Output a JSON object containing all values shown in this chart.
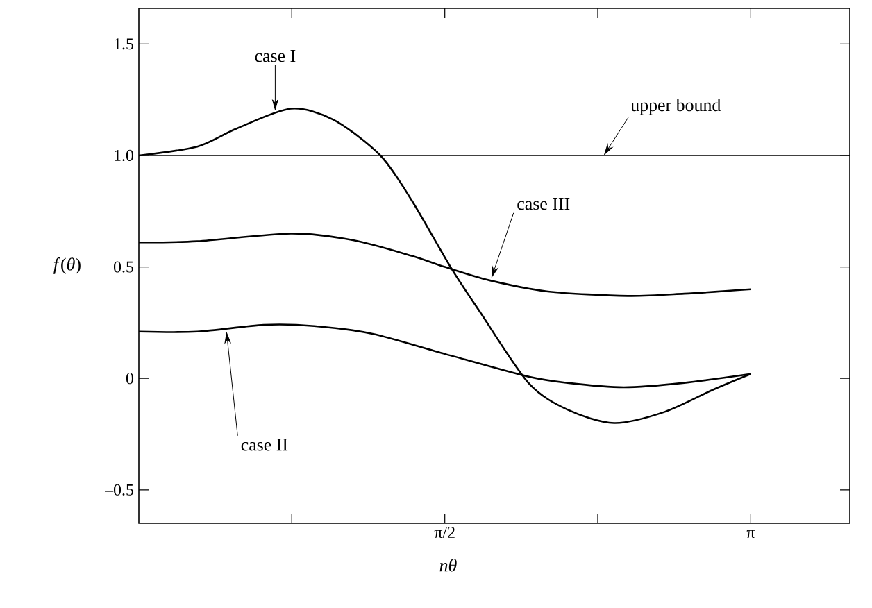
{
  "chart_data": {
    "type": "line",
    "xlabel": "nθ",
    "ylabel": "*f*(*θ*)",
    "xlim": [
      0,
      3.65
    ],
    "ylim": [
      -0.65,
      1.66
    ],
    "xticks": [
      {
        "value": 0.785,
        "label": null
      },
      {
        "value": 1.5708,
        "label": "π/2"
      },
      {
        "value": 2.356,
        "label": null
      },
      {
        "value": 3.1416,
        "label": "π"
      }
    ],
    "yticks": [
      {
        "value": -0.5,
        "label": "–0.5"
      },
      0,
      0.5,
      {
        "value": 1.0,
        "label": "1.0"
      },
      1.5
    ],
    "color": "#000000",
    "marker": "none",
    "line_style": "solid",
    "series": [
      {
        "color": "#000000",
        "x": [
          0,
          0.3,
          0.5,
          0.78,
          1.0,
          1.24,
          1.4,
          1.6,
          1.75,
          2.0,
          2.2,
          2.44,
          2.7,
          2.95,
          3.1416
        ],
        "values": [
          1.0,
          1.04,
          1.12,
          1.21,
          1.16,
          1.0,
          0.8,
          0.5,
          0.3,
          -0.02,
          -0.14,
          -0.2,
          -0.15,
          -0.05,
          0.02
        ]
      },
      {
        "color": "#000000",
        "x": [
          0,
          0.3,
          0.64,
          0.9,
          1.2,
          1.5708,
          1.99,
          2.2,
          2.49,
          2.8,
          3.1416
        ],
        "values": [
          0.21,
          0.21,
          0.24,
          0.235,
          0.2,
          0.11,
          0.01,
          -0.02,
          -0.04,
          -0.02,
          0.02
        ]
      },
      {
        "color": "#000000",
        "x": [
          0,
          0.3,
          0.78,
          1.1,
          1.4,
          1.5708,
          1.8,
          2.1,
          2.51,
          2.8,
          3.1416
        ],
        "values": [
          0.61,
          0.615,
          0.65,
          0.62,
          0.55,
          0.5,
          0.44,
          0.39,
          0.37,
          0.38,
          0.4
        ]
      }
    ],
    "ref_lines": [
      {
        "axis": "y",
        "value": 1.0,
        "label": "upper bound"
      }
    ],
    "annotations": [
      {
        "text": "case I",
        "x": 0.7,
        "y": 1.2
      },
      {
        "text": "case II",
        "x": 0.45,
        "y": 0.21
      },
      {
        "text": "case III",
        "x": 1.81,
        "y": 0.45
      }
    ]
  }
}
